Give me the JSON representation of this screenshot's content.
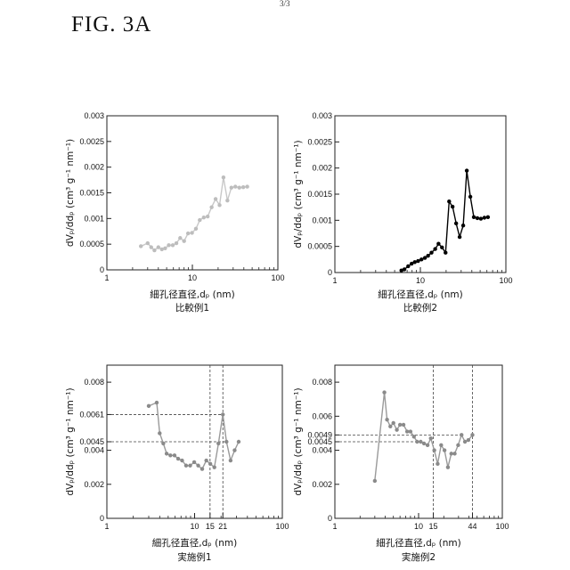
{
  "figure": {
    "title": "FIG.  3A",
    "page_mark": "3/3"
  },
  "chart_data": [
    {
      "type": "scatter",
      "caption": "比較例1",
      "xlabel": "細孔径直径,dₚ (nm)",
      "ylabel": "dVₚ/ddₚ (cm³ g⁻¹ nm⁻¹)",
      "xscale": "log",
      "xlim": [
        1,
        100
      ],
      "ylim": [
        0,
        0.003
      ],
      "x_ticks": [
        1,
        10,
        100
      ],
      "x_tick_labels": [
        "1",
        "10",
        "100"
      ],
      "y_ticks": [
        0,
        0.0005,
        0.001,
        0.0015,
        0.002,
        0.0025,
        0.003
      ],
      "y_tick_labels": [
        "0",
        "0.0005",
        "0.001",
        "0.0015",
        "0.002",
        "0.0025",
        "0.003"
      ],
      "color": "#c8c8c8",
      "marker_color": "#bdbdbd",
      "reference_lines": [],
      "series": [
        {
          "x": [
            2.5,
            3.0,
            3.3,
            3.6,
            4.0,
            4.4,
            4.8,
            5.3,
            5.9,
            6.5,
            7.2,
            8.0,
            8.9,
            9.9,
            11.0,
            12.2,
            13.6,
            15.1,
            16.8,
            18.7,
            20.8,
            23.1,
            25.7,
            28.6,
            31.8,
            35.4,
            39.4,
            43.8
          ],
          "y": [
            0.00046,
            0.00052,
            0.00044,
            0.00038,
            0.00044,
            0.0004,
            0.00042,
            0.00048,
            0.00048,
            0.00052,
            0.00062,
            0.00056,
            0.00071,
            0.00072,
            0.0008,
            0.00097,
            0.00102,
            0.00104,
            0.00122,
            0.00138,
            0.00126,
            0.0018,
            0.00135,
            0.0016,
            0.00162,
            0.0016,
            0.00161,
            0.00162
          ]
        }
      ]
    },
    {
      "type": "scatter",
      "caption": "比較例2",
      "xlabel": "細孔径直径,dₚ (nm)",
      "ylabel": "dVₚ/ddₚ (cm³ g⁻¹ nm⁻¹)",
      "xscale": "log",
      "xlim": [
        1,
        100
      ],
      "ylim": [
        0,
        0.003
      ],
      "x_ticks": [
        1,
        10,
        100
      ],
      "x_tick_labels": [
        "1",
        "10",
        "100"
      ],
      "y_ticks": [
        0,
        0.0005,
        0.001,
        0.0015,
        0.002,
        0.0025,
        0.003
      ],
      "y_tick_labels": [
        "0",
        "0.0005",
        "0.001",
        "0.0015",
        "0.002",
        "0.0025",
        "0.003"
      ],
      "color": "#000000",
      "marker_color": "#000000",
      "reference_lines": [],
      "series": [
        {
          "x": [
            6.0,
            6.5,
            7.2,
            7.9,
            8.6,
            9.4,
            10.3,
            11.3,
            12.3,
            13.5,
            14.9,
            16.3,
            17.9,
            19.7,
            21.7,
            23.8,
            26.2,
            28.8,
            31.7,
            34.9,
            38.4,
            42.2,
            46.4,
            51.0,
            56.1,
            61.7
          ],
          "y": [
            4e-05,
            6e-05,
            0.00012,
            0.00017,
            0.0002,
            0.00022,
            0.00025,
            0.00028,
            0.00032,
            0.00038,
            0.00045,
            0.00055,
            0.00048,
            0.00038,
            0.00136,
            0.00126,
            0.00094,
            0.00068,
            0.0009,
            0.00195,
            0.00145,
            0.00106,
            0.00104,
            0.00103,
            0.00105,
            0.00106
          ]
        }
      ]
    },
    {
      "type": "scatter",
      "caption": "実施例1",
      "xlabel": "細孔径直径,dₚ (nm)",
      "ylabel": "dVₚ/ddₚ (cm³ g⁻¹ nm⁻¹)",
      "xscale": "log",
      "xlim": [
        1,
        100
      ],
      "ylim": [
        0,
        0.009
      ],
      "x_ticks": [
        1,
        10,
        15,
        21,
        100
      ],
      "x_tick_labels": [
        "1",
        "10",
        "15",
        "21",
        "100"
      ],
      "y_ticks": [
        0,
        0.002,
        0.004,
        0.0045,
        0.0061,
        0.008
      ],
      "y_tick_labels": [
        "0",
        "0.002",
        "0.004",
        "0.0045",
        "0.0061",
        "0.008"
      ],
      "color": "#9a9a9a",
      "marker_color": "#8a8a8a",
      "reference_lines": [
        {
          "axis": "y",
          "value": 0.0061
        },
        {
          "axis": "y",
          "value": 0.0045
        },
        {
          "axis": "x",
          "value": 15
        },
        {
          "axis": "x",
          "value": 21
        }
      ],
      "series": [
        {
          "x": [
            3.0,
            3.7,
            4.0,
            4.4,
            4.8,
            5.3,
            5.9,
            6.5,
            7.2,
            8.0,
            8.9,
            9.9,
            11.0,
            12.2,
            13.6,
            15.1,
            16.8,
            18.7,
            21.0,
            23.1,
            25.7,
            28.6,
            31.8
          ],
          "y": [
            0.0066,
            0.0068,
            0.005,
            0.0044,
            0.0038,
            0.0037,
            0.0037,
            0.0035,
            0.0034,
            0.0031,
            0.0031,
            0.0033,
            0.0031,
            0.0029,
            0.0034,
            0.0032,
            0.003,
            0.0044,
            0.0061,
            0.0045,
            0.0034,
            0.004,
            0.0045
          ]
        }
      ]
    },
    {
      "type": "scatter",
      "caption": "実施例2",
      "xlabel": "細孔径直径,dₚ (nm)",
      "ylabel": "dVₚ/ddₚ (cm³ g⁻¹ nm⁻¹)",
      "xscale": "log",
      "xlim": [
        1,
        100
      ],
      "ylim": [
        0,
        0.009
      ],
      "x_ticks": [
        1,
        10,
        15,
        44,
        100
      ],
      "x_tick_labels": [
        "1",
        "10",
        "15",
        "44",
        "100"
      ],
      "y_ticks": [
        0,
        0.002,
        0.004,
        0.0045,
        0.0049,
        0.006,
        0.008
      ],
      "y_tick_labels": [
        "0",
        "0.002",
        "0.004",
        "0.0045",
        "0.0049",
        "0.006",
        "0.008"
      ],
      "color": "#9a9a9a",
      "marker_color": "#8a8a8a",
      "reference_lines": [
        {
          "axis": "y",
          "value": 0.0049
        },
        {
          "axis": "y",
          "value": 0.0045
        },
        {
          "axis": "x",
          "value": 15
        },
        {
          "axis": "x",
          "value": 44
        }
      ],
      "series": [
        {
          "x": [
            3.0,
            3.9,
            4.2,
            4.6,
            5.0,
            5.5,
            6.0,
            6.6,
            7.3,
            8.0,
            8.8,
            9.6,
            10.6,
            11.6,
            12.8,
            14.0,
            15.4,
            16.9,
            18.6,
            20.4,
            22.4,
            24.6,
            27.0,
            29.7,
            32.6,
            35.8,
            39.3,
            44.0
          ],
          "y": [
            0.0022,
            0.0074,
            0.0058,
            0.0054,
            0.0056,
            0.0052,
            0.0055,
            0.0055,
            0.0051,
            0.0051,
            0.0048,
            0.0045,
            0.0045,
            0.0044,
            0.0043,
            0.0047,
            0.004,
            0.0032,
            0.0043,
            0.004,
            0.003,
            0.0038,
            0.0038,
            0.0043,
            0.0049,
            0.0045,
            0.0046,
            0.0049
          ]
        }
      ]
    }
  ]
}
